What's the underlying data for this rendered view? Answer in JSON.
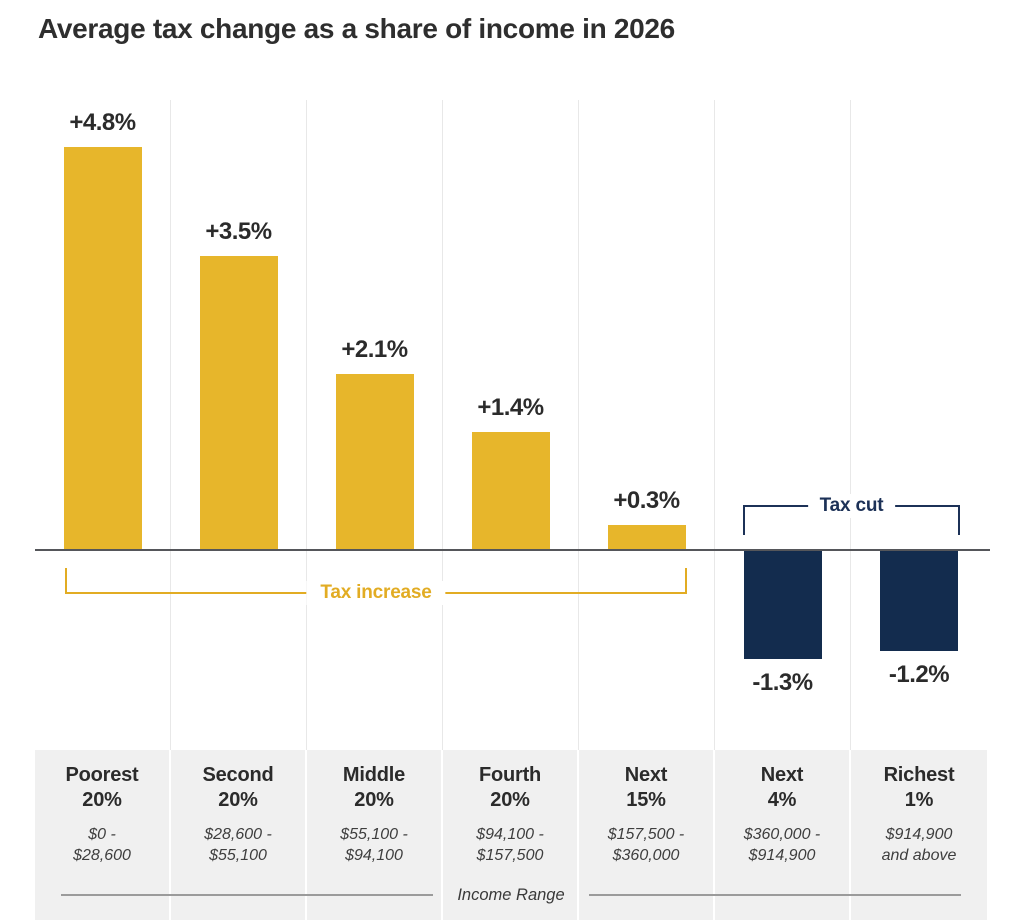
{
  "page": {
    "title": "Average tax change as a share of income in 2026"
  },
  "chart_data": {
    "type": "bar",
    "title": "Average tax change as a share of income in 2026",
    "xlabel": "Income Range",
    "unit": "percent of income",
    "ylim": [
      -1.5,
      5.0
    ],
    "axis_baseline": 0,
    "grid": "vertical category separators, no y-axis",
    "legend_position": "none",
    "colors": {
      "tax_increase_bar": "#E7B62B",
      "tax_cut_bar": "#132C4E"
    },
    "columns": [
      {
        "name": "Poorest\n20%",
        "range": "$0 -\n$28,600",
        "value": 4.8,
        "value_label": "+4.8%",
        "group": "Tax increase"
      },
      {
        "name": "Second\n20%",
        "range": "$28,600 -\n$55,100",
        "value": 3.5,
        "value_label": "+3.5%",
        "group": "Tax increase"
      },
      {
        "name": "Middle\n20%",
        "range": "$55,100 -\n$94,100",
        "value": 2.1,
        "value_label": "+2.1%",
        "group": "Tax increase"
      },
      {
        "name": "Fourth\n20%",
        "range": "$94,100 -\n$157,500",
        "value": 1.4,
        "value_label": "+1.4%",
        "group": "Tax increase"
      },
      {
        "name": "Next\n15%",
        "range": "$157,500 -\n$360,000",
        "value": 0.3,
        "value_label": "+0.3%",
        "group": "Tax increase"
      },
      {
        "name": "Next\n4%",
        "range": "$360,000 -\n$914,900",
        "value": -1.3,
        "value_label": "-1.3%",
        "group": "Tax cut"
      },
      {
        "name": "Richest\n1%",
        "range": "$914,900\nand above",
        "value": -1.2,
        "value_label": "-1.2%",
        "group": "Tax cut"
      }
    ],
    "annotations": [
      {
        "label": "Tax increase",
        "color": "#E2AC23",
        "spans_columns": [
          1,
          5
        ],
        "position": "below axis, bracket opening up"
      },
      {
        "label": "Tax cut",
        "color": "#1C3157",
        "spans_columns": [
          6,
          7
        ],
        "position": "above axis, bracket opening down"
      }
    ]
  }
}
